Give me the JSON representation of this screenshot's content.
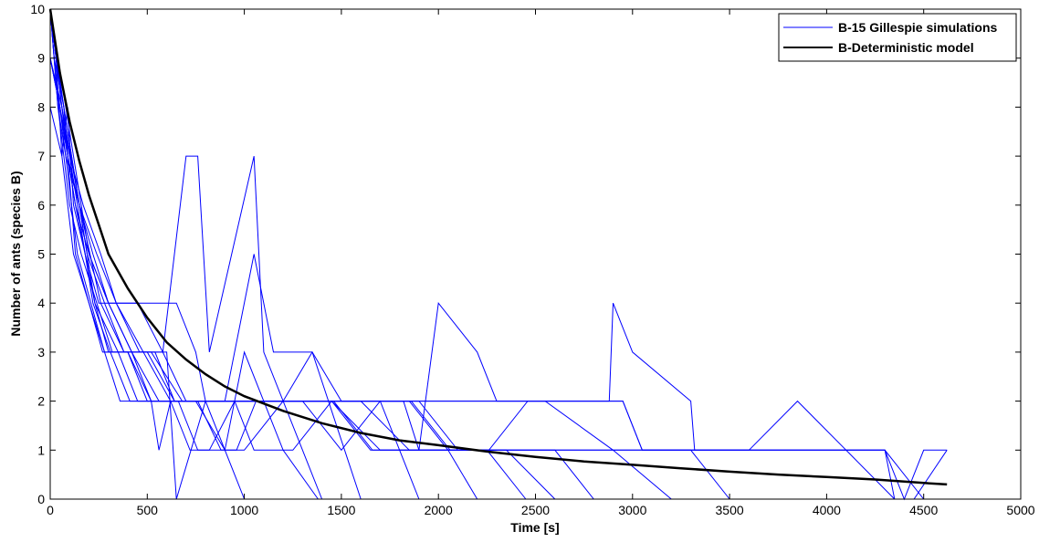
{
  "chart_data": {
    "type": "line",
    "xlabel": "Time [s]",
    "ylabel": "Number of ants (species B)",
    "xlim": [
      0,
      5000
    ],
    "ylim": [
      0,
      10
    ],
    "xticks": [
      0,
      500,
      1000,
      1500,
      2000,
      2500,
      3000,
      3500,
      4000,
      4500,
      5000
    ],
    "yticks": [
      0,
      1,
      2,
      3,
      4,
      5,
      6,
      7,
      8,
      9,
      10
    ],
    "grid": false,
    "legend_position": "top-right",
    "legend": [
      {
        "label": "B-15 Gillespie simulations",
        "color": "#0000ff"
      },
      {
        "label": "B-Deterministic model",
        "color": "#000000"
      }
    ],
    "deterministic": {
      "name": "B-Deterministic model",
      "color": "#000000",
      "x": [
        0,
        50,
        100,
        150,
        200,
        250,
        300,
        400,
        500,
        600,
        700,
        800,
        900,
        1000,
        1200,
        1400,
        1600,
        1800,
        2000,
        2250,
        2500,
        2750,
        3000,
        3250,
        3500,
        3750,
        4000,
        4250,
        4500,
        4620
      ],
      "y": [
        10,
        8.7,
        7.7,
        6.9,
        6.2,
        5.6,
        5.0,
        4.3,
        3.7,
        3.2,
        2.85,
        2.55,
        2.3,
        2.1,
        1.8,
        1.55,
        1.35,
        1.2,
        1.1,
        0.97,
        0.86,
        0.77,
        0.7,
        0.63,
        0.56,
        0.5,
        0.45,
        0.4,
        0.33,
        0.3
      ]
    },
    "simulations": {
      "name": "B-15 Gillespie simulations",
      "color": "#0000ff",
      "series": [
        {
          "x": [
            0,
            30,
            60,
            90,
            120,
            180,
            250,
            350,
            500,
            650,
            750,
            800,
            1000
          ],
          "y": [
            10,
            9,
            7,
            8,
            6,
            5,
            4,
            4,
            4,
            4,
            3,
            2,
            0
          ]
        },
        {
          "x": [
            0,
            40,
            80,
            150,
            220,
            300,
            450,
            580,
            700,
            760,
            820,
            1050,
            1100,
            1400
          ],
          "y": [
            10,
            8,
            7,
            6,
            5,
            4,
            4,
            3,
            7,
            7,
            3,
            7,
            3,
            0
          ]
        },
        {
          "x": [
            0,
            20,
            70,
            130,
            200,
            280,
            400,
            520,
            560,
            620,
            750,
            900,
            1000,
            1200,
            1380
          ],
          "y": [
            10,
            9,
            8,
            5,
            4,
            3,
            3,
            2,
            1,
            2,
            2,
            1,
            3,
            1,
            0
          ]
        },
        {
          "x": [
            0,
            50,
            100,
            170,
            260,
            340,
            480,
            600,
            650,
            800,
            900,
            1050,
            1150,
            1250,
            1350,
            1600
          ],
          "y": [
            9,
            8,
            7,
            6,
            5,
            4,
            3,
            3,
            0,
            2,
            2,
            5,
            3,
            3,
            3,
            0
          ]
        },
        {
          "x": [
            0,
            30,
            90,
            150,
            230,
            300,
            400,
            500,
            600,
            700,
            900,
            1000,
            1100,
            1300,
            1500,
            1700,
            1900
          ],
          "y": [
            10,
            9,
            7,
            6,
            4,
            3,
            3,
            2,
            2,
            2,
            2,
            2,
            2,
            2,
            1,
            2,
            0
          ]
        },
        {
          "x": [
            0,
            60,
            120,
            200,
            270,
            350,
            450,
            550,
            700,
            850,
            1000,
            1150,
            1300,
            1450,
            1650,
            1850,
            2050,
            2200
          ],
          "y": [
            8,
            7,
            5,
            4,
            3,
            3,
            2,
            2,
            2,
            2,
            2,
            2,
            2,
            2,
            2,
            2,
            1,
            0
          ]
        },
        {
          "x": [
            0,
            40,
            100,
            160,
            240,
            320,
            420,
            520,
            620,
            720,
            820,
            950,
            1050,
            1250,
            1450,
            1650,
            1850,
            2050,
            2250,
            2450
          ],
          "y": [
            10,
            8,
            6,
            5,
            4,
            3,
            3,
            2,
            2,
            1,
            1,
            2,
            1,
            1,
            2,
            1,
            1,
            1,
            1,
            0
          ]
        },
        {
          "x": [
            0,
            50,
            130,
            200,
            300,
            420,
            540,
            640,
            760,
            880,
            1000,
            1200,
            1350,
            1500,
            1700,
            1900,
            2100,
            2350,
            2600
          ],
          "y": [
            9,
            8,
            6,
            5,
            4,
            3,
            3,
            2,
            2,
            1,
            1,
            2,
            3,
            2,
            2,
            2,
            1,
            1,
            0
          ]
        },
        {
          "x": [
            0,
            20,
            80,
            140,
            210,
            280,
            360,
            460,
            560,
            660,
            760,
            860,
            960,
            1060,
            1260,
            1460,
            1660,
            1860,
            2060,
            2300,
            2600,
            2800,
            3000
          ],
          "y": [
            10,
            9,
            7,
            5,
            4,
            3,
            2,
            2,
            2,
            2,
            1,
            1,
            1,
            2,
            2,
            2,
            2,
            2,
            1,
            1,
            1,
            0,
            0
          ]
        },
        {
          "x": [
            0,
            60,
            140,
            220,
            310,
            410,
            510,
            610,
            710,
            810,
            910,
            1020,
            1220,
            1420,
            1620,
            1820,
            1900,
            2000,
            2200,
            2300,
            2400,
            2550,
            2900,
            3200
          ],
          "y": [
            9,
            8,
            6,
            4,
            3,
            2,
            2,
            2,
            2,
            2,
            2,
            2,
            2,
            2,
            2,
            2,
            1,
            4,
            3,
            2,
            2,
            2,
            1,
            0
          ]
        },
        {
          "x": [
            0,
            30,
            110,
            190,
            280,
            380,
            500,
            640,
            780,
            920,
            1060,
            1260,
            1460,
            1660,
            1860,
            2060,
            2260,
            2460,
            2700,
            2950,
            3050,
            3300,
            3500
          ],
          "y": [
            10,
            9,
            7,
            5,
            4,
            3,
            3,
            2,
            2,
            2,
            2,
            2,
            2,
            1,
            1,
            1,
            1,
            2,
            2,
            2,
            1,
            1,
            0
          ]
        },
        {
          "x": [
            0,
            70,
            150,
            240,
            340,
            460,
            580,
            700,
            820,
            940,
            1060,
            1260,
            1460,
            1700,
            1950,
            2200,
            2500,
            2800,
            2880,
            2900,
            3000,
            3300,
            3320,
            3500,
            3800,
            4100,
            4350
          ],
          "y": [
            10,
            8,
            6,
            5,
            4,
            3,
            3,
            2,
            2,
            2,
            2,
            2,
            2,
            2,
            2,
            2,
            2,
            2,
            2,
            4,
            3,
            2,
            1,
            1,
            1,
            1,
            0
          ]
        },
        {
          "x": [
            0,
            40,
            120,
            200,
            300,
            420,
            560,
            700,
            860,
            1020,
            1220,
            1420,
            1700,
            2000,
            2300,
            2600,
            2900,
            2950,
            3050,
            3300,
            3350,
            3600,
            3850,
            4100,
            4300,
            4500
          ],
          "y": [
            10,
            9,
            7,
            5,
            4,
            3,
            2,
            2,
            2,
            2,
            2,
            2,
            2,
            2,
            2,
            2,
            2,
            2,
            1,
            1,
            1,
            1,
            2,
            1,
            1,
            0
          ]
        },
        {
          "x": [
            0,
            50,
            130,
            230,
            350,
            480,
            620,
            780,
            940,
            1120,
            1350,
            1600,
            1850,
            2100,
            2400,
            2700,
            3000,
            3300,
            3350,
            3500,
            3800,
            4100,
            4300,
            4400,
            4500,
            4620
          ],
          "y": [
            9,
            8,
            6,
            4,
            3,
            3,
            2,
            2,
            2,
            2,
            2,
            2,
            1,
            1,
            1,
            1,
            1,
            1,
            1,
            1,
            1,
            1,
            1,
            0,
            1,
            1
          ]
        },
        {
          "x": [
            0,
            60,
            150,
            260,
            380,
            520,
            680,
            840,
            1000,
            1200,
            1450,
            1700,
            1950,
            2200,
            2500,
            2800,
            3100,
            3400,
            3700,
            4000,
            4300,
            4350,
            4450,
            4620
          ],
          "y": [
            10,
            8,
            6,
            4,
            3,
            3,
            2,
            2,
            2,
            2,
            2,
            1,
            1,
            1,
            1,
            1,
            1,
            1,
            1,
            1,
            1,
            0,
            0,
            1
          ]
        }
      ]
    }
  }
}
